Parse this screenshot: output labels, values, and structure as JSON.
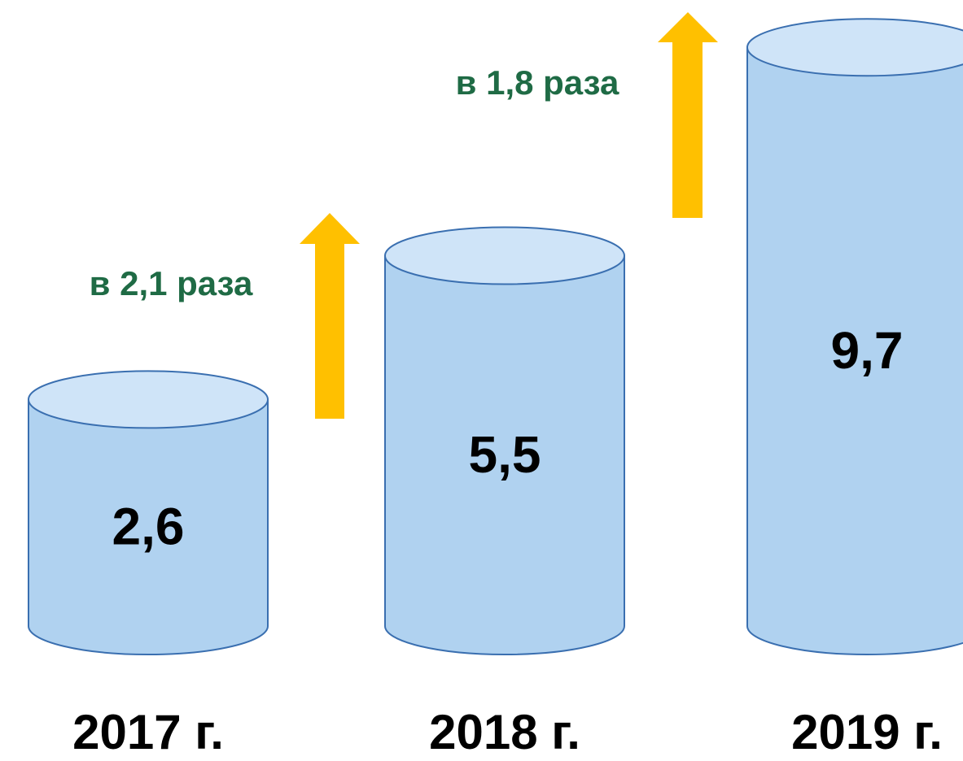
{
  "chart_data": {
    "type": "bar",
    "categories": [
      "2017 г.",
      "2018 г.",
      "2019 г."
    ],
    "values": [
      2.6,
      5.5,
      9.7
    ],
    "value_labels": [
      "2,6",
      "5,5",
      "9,7"
    ],
    "color": "#b0d2f0",
    "annotations": [
      "в 2,1 раза",
      "в 1,8 раза"
    ]
  }
}
